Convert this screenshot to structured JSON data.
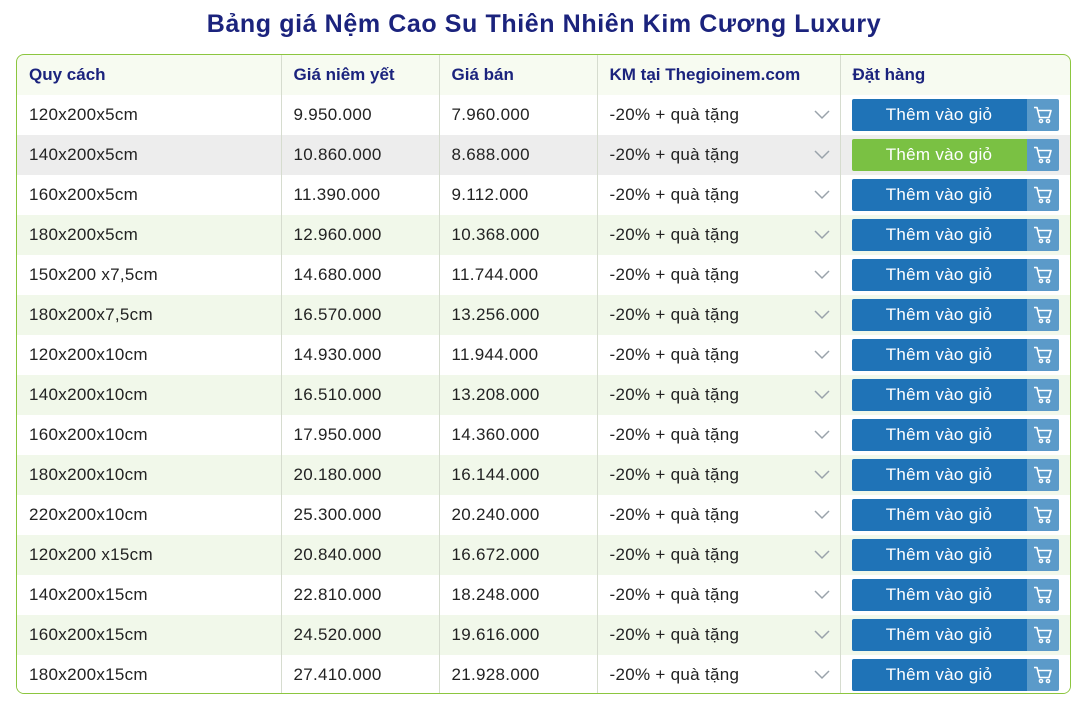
{
  "title": "Bảng giá Nệm Cao Su Thiên Nhiên Kim Cương Luxury",
  "headers": [
    "Quy cách",
    "Giá niêm yết",
    "Giá bán",
    "KM tại Thegioinem.com",
    "Đặt hàng"
  ],
  "button_label": "Thêm vào giỏ",
  "promo_label": "-20% + quà tặng",
  "icons": {
    "dropdown": "chevron-down-icon",
    "cart": "cart-icon"
  },
  "colors": {
    "title": "#1b237d",
    "button": "#1f73b7",
    "button_active": "#7ac143",
    "border": "#8cc63f"
  },
  "rows": [
    {
      "size": "120x200x5cm",
      "list_price": "9.950.000",
      "sale_price": "7.960.000"
    },
    {
      "size": "140x200x5cm",
      "list_price": "10.860.000",
      "sale_price": "8.688.000"
    },
    {
      "size": "160x200x5cm",
      "list_price": "11.390.000",
      "sale_price": "9.112.000"
    },
    {
      "size": "180x200x5cm",
      "list_price": "12.960.000",
      "sale_price": "10.368.000"
    },
    {
      "size": "150x200 x7,5cm",
      "list_price": "14.680.000",
      "sale_price": "11.744.000"
    },
    {
      "size": "180x200x7,5cm",
      "list_price": "16.570.000",
      "sale_price": "13.256.000"
    },
    {
      "size": "120x200x10cm",
      "list_price": "14.930.000",
      "sale_price": "11.944.000"
    },
    {
      "size": "140x200x10cm",
      "list_price": "16.510.000",
      "sale_price": "13.208.000"
    },
    {
      "size": "160x200x10cm",
      "list_price": "17.950.000",
      "sale_price": "14.360.000"
    },
    {
      "size": "180x200x10cm",
      "list_price": "20.180.000",
      "sale_price": "16.144.000"
    },
    {
      "size": "220x200x10cm",
      "list_price": "25.300.000",
      "sale_price": "20.240.000"
    },
    {
      "size": "120x200 x15cm",
      "list_price": "20.840.000",
      "sale_price": "16.672.000"
    },
    {
      "size": "140x200x15cm",
      "list_price": "22.810.000",
      "sale_price": "18.248.000"
    },
    {
      "size": "160x200x15cm",
      "list_price": "24.520.000",
      "sale_price": "19.616.000"
    },
    {
      "size": "180x200x15cm",
      "list_price": "27.410.000",
      "sale_price": "21.928.000"
    }
  ],
  "hover_row": 1
}
